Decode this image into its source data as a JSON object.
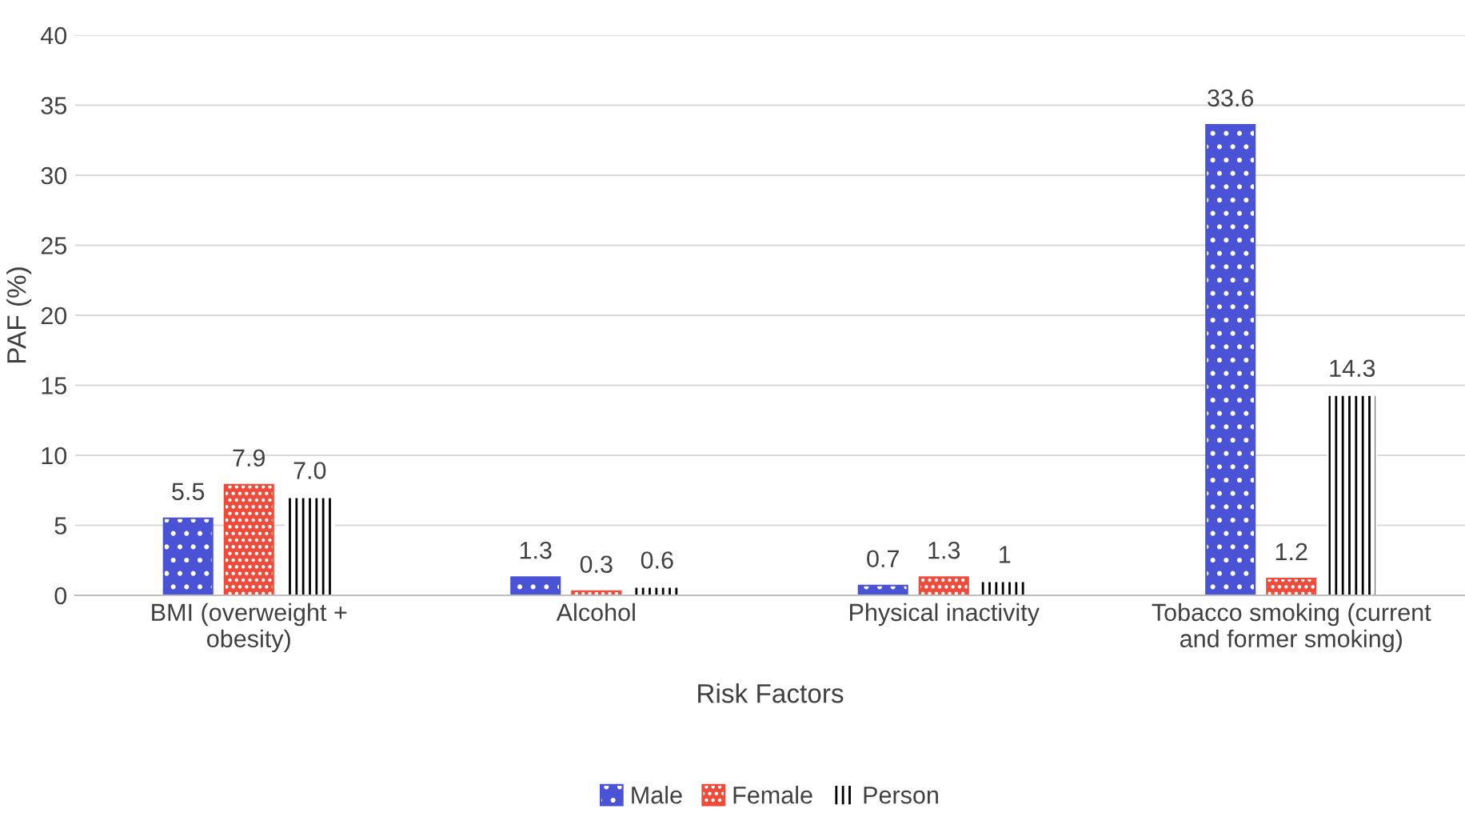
{
  "chart_data": {
    "type": "bar",
    "xlabel": "Risk Factors",
    "ylabel": "PAF (%)",
    "categories": [
      "BMI (overweight +\nobesity)",
      "Alcohol",
      "Physical inactivity",
      "Tobacco smoking (current\nand former smoking)"
    ],
    "series": [
      {
        "name": "Male",
        "color": "#4a52d6",
        "values": [
          5.5,
          1.3,
          0.7,
          33.6
        ],
        "value_labels": [
          "5.5",
          "1.3",
          "0.7",
          "33.6"
        ]
      },
      {
        "name": "Female",
        "color": "#f04b3a",
        "values": [
          7.9,
          0.3,
          1.3,
          1.2
        ],
        "value_labels": [
          "7.9",
          "0.3",
          "1.3",
          "1.2"
        ]
      },
      {
        "name": "Person",
        "color": "#ffffff",
        "values": [
          7.0,
          0.6,
          1,
          14.3
        ],
        "value_labels": [
          "7.0",
          "0.6",
          "1",
          "14.3"
        ]
      }
    ],
    "ylim": [
      0,
      40
    ],
    "yticks": [
      0,
      5,
      10,
      15,
      20,
      25,
      30,
      35,
      40
    ],
    "grid": "y",
    "legend": "bottom"
  }
}
